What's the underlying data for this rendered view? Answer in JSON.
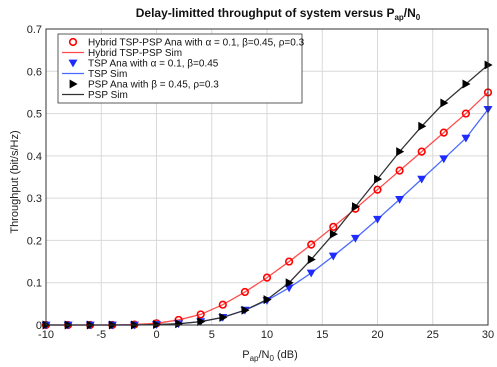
{
  "chart_data": {
    "type": "line",
    "title_main": "Delay-limitted throughput of system versus P",
    "title_sub": "ap",
    "title_mid": "/N",
    "title_sub2": "0",
    "xlabel_main": "P",
    "xlabel_sub": "ap",
    "xlabel_mid": "/N",
    "xlabel_sub2": "0",
    "xlabel_tail": " (dB)",
    "ylabel": "Throughput (bit/s/Hz)",
    "xlim": [
      -10,
      30
    ],
    "ylim": [
      0,
      0.7
    ],
    "xticks": [
      -10,
      -5,
      0,
      5,
      10,
      15,
      20,
      25,
      30
    ],
    "yticks": [
      0,
      0.1,
      0.2,
      0.3,
      0.4,
      0.5,
      0.6,
      0.7
    ],
    "ytick_labels": [
      "0",
      "0.1",
      "0.2",
      "0.3",
      "0.4",
      "0.5",
      "0.6",
      "0.7"
    ],
    "grid": true,
    "legend_position": "top-left",
    "x": [
      -10,
      -8,
      -6,
      -4,
      -2,
      0,
      2,
      4,
      6,
      8,
      10,
      12,
      14,
      16,
      18,
      20,
      22,
      24,
      26,
      28,
      30
    ],
    "series": [
      {
        "name": "Hybrid TSP-PSP Ana with α = 0.1, β=0.45, ρ=0.3",
        "color": "#ff0000",
        "style": "markers",
        "marker": "circle",
        "values": [
          0,
          0,
          0,
          0,
          0.001,
          0.004,
          0.012,
          0.025,
          0.048,
          0.078,
          0.112,
          0.15,
          0.19,
          0.232,
          0.275,
          0.32,
          0.365,
          0.41,
          0.455,
          0.5,
          0.55
        ]
      },
      {
        "name": "Hybrid TSP-PSP Sim",
        "color": "#ff4d4d",
        "style": "line",
        "values": [
          0,
          0,
          0,
          0,
          0.001,
          0.004,
          0.012,
          0.025,
          0.048,
          0.078,
          0.112,
          0.15,
          0.19,
          0.232,
          0.275,
          0.32,
          0.365,
          0.41,
          0.455,
          0.5,
          0.55
        ]
      },
      {
        "name": "TSP Ana with α = 0.1, β=0.45",
        "color": "#1f2bff",
        "style": "markers",
        "marker": "triangle-down",
        "values": [
          0,
          0,
          0,
          0,
          0,
          0.001,
          0.003,
          0.008,
          0.018,
          0.035,
          0.058,
          0.088,
          0.123,
          0.163,
          0.205,
          0.25,
          0.297,
          0.345,
          0.393,
          0.442,
          0.51
        ]
      },
      {
        "name": "TSP Sim",
        "color": "#4a6bff",
        "style": "line",
        "values": [
          0,
          0,
          0,
          0,
          0,
          0.001,
          0.003,
          0.008,
          0.018,
          0.035,
          0.058,
          0.088,
          0.123,
          0.163,
          0.205,
          0.25,
          0.297,
          0.345,
          0.393,
          0.442,
          0.51
        ]
      },
      {
        "name": "PSP Ana with β = 0.45, ρ=0.3",
        "color": "#000000",
        "style": "markers",
        "marker": "triangle-right",
        "values": [
          0,
          0,
          0,
          0,
          0,
          0.001,
          0.003,
          0.008,
          0.018,
          0.035,
          0.06,
          0.1,
          0.155,
          0.215,
          0.28,
          0.345,
          0.41,
          0.47,
          0.525,
          0.57,
          0.615
        ]
      },
      {
        "name": "PSP Sim",
        "color": "#333333",
        "style": "line",
        "values": [
          0,
          0,
          0,
          0,
          0,
          0.001,
          0.003,
          0.008,
          0.018,
          0.035,
          0.06,
          0.1,
          0.155,
          0.215,
          0.28,
          0.345,
          0.41,
          0.47,
          0.525,
          0.57,
          0.615
        ]
      }
    ]
  }
}
